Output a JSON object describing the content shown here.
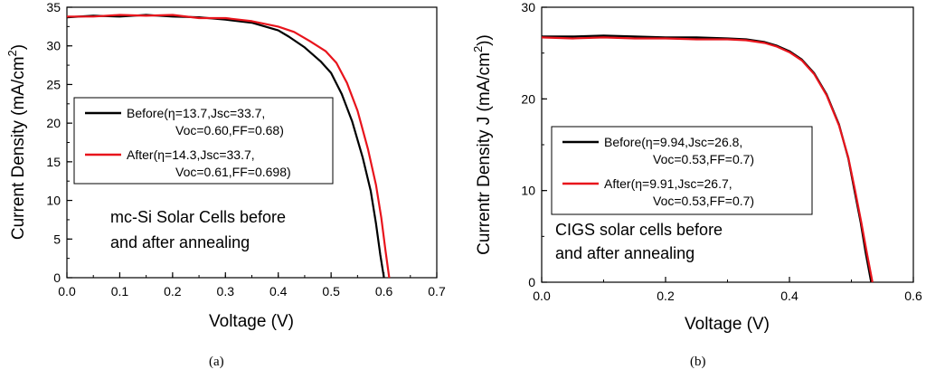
{
  "subfigure_labels": [
    "(a)",
    "(b)"
  ],
  "chart_data": [
    {
      "type": "line",
      "title": "",
      "xlabel": "Voltage (V)",
      "ylabel_main": "Current Density (mA/cm",
      "ylabel_sup": "2",
      "ylabel_tail": ")",
      "xlim": [
        0.0,
        0.7
      ],
      "ylim": [
        0,
        35
      ],
      "x_ticks": [
        "0.0",
        "0.1",
        "0.2",
        "0.3",
        "0.4",
        "0.5",
        "0.6",
        "0.7"
      ],
      "y_ticks": [
        "0",
        "5",
        "10",
        "15",
        "20",
        "25",
        "30",
        "35"
      ],
      "annotation": [
        "mc-Si Solar Cells before",
        "and after annealing"
      ],
      "legend": [
        {
          "line1": "Before(η=13.7,Jsc=33.7,",
          "line2": "Voc=0.60,FF=0.68)",
          "color": "#000000"
        },
        {
          "line1": "After(η=14.3,Jsc=33.7,",
          "line2": "Voc=0.61,FF=0.698)",
          "color": "#e8141c"
        }
      ],
      "series": [
        {
          "name": "Before",
          "color": "#000000",
          "points": [
            [
              0.0,
              33.7
            ],
            [
              0.05,
              33.9
            ],
            [
              0.1,
              33.8
            ],
            [
              0.15,
              34.0
            ],
            [
              0.2,
              33.8
            ],
            [
              0.25,
              33.7
            ],
            [
              0.3,
              33.4
            ],
            [
              0.35,
              33.0
            ],
            [
              0.4,
              32.0
            ],
            [
              0.42,
              31.2
            ],
            [
              0.45,
              29.8
            ],
            [
              0.48,
              28.0
            ],
            [
              0.5,
              26.5
            ],
            [
              0.52,
              23.8
            ],
            [
              0.54,
              20.2
            ],
            [
              0.56,
              15.5
            ],
            [
              0.575,
              11.2
            ],
            [
              0.585,
              7.0
            ],
            [
              0.593,
              3.0
            ],
            [
              0.6,
              0.0
            ]
          ]
        },
        {
          "name": "After",
          "color": "#e8141c",
          "points": [
            [
              0.0,
              33.8
            ],
            [
              0.05,
              33.8
            ],
            [
              0.1,
              34.0
            ],
            [
              0.15,
              33.9
            ],
            [
              0.2,
              34.0
            ],
            [
              0.25,
              33.6
            ],
            [
              0.3,
              33.6
            ],
            [
              0.35,
              33.2
            ],
            [
              0.4,
              32.5
            ],
            [
              0.43,
              31.8
            ],
            [
              0.46,
              30.6
            ],
            [
              0.49,
              29.3
            ],
            [
              0.51,
              27.8
            ],
            [
              0.53,
              25.2
            ],
            [
              0.55,
              21.6
            ],
            [
              0.57,
              16.6
            ],
            [
              0.585,
              12.0
            ],
            [
              0.595,
              7.8
            ],
            [
              0.603,
              3.5
            ],
            [
              0.61,
              0.0
            ]
          ]
        }
      ]
    },
    {
      "type": "line",
      "title": "",
      "xlabel": "Voltage (V)",
      "ylabel_main": "Currentr Density J (mA/cm",
      "ylabel_sup": "2",
      "ylabel_tail": "))",
      "xlim": [
        0.0,
        0.6
      ],
      "ylim": [
        0,
        30
      ],
      "x_ticks": [
        "0.0",
        "0.2",
        "0.4",
        "0.6"
      ],
      "y_ticks": [
        "0",
        "10",
        "20",
        "30"
      ],
      "annotation": [
        "CIGS solar cells before",
        "and after annealing"
      ],
      "legend": [
        {
          "line1": "Before(η=9.94,Jsc=26.8,",
          "line2": "Voc=0.53,FF=0.7)",
          "color": "#000000"
        },
        {
          "line1": "After(η=9.91,Jsc=26.7,",
          "line2": "Voc=0.53,FF=0.7)",
          "color": "#e8141c"
        }
      ],
      "series": [
        {
          "name": "Before",
          "color": "#000000",
          "points": [
            [
              0.0,
              26.8
            ],
            [
              0.05,
              26.8
            ],
            [
              0.1,
              26.9
            ],
            [
              0.15,
              26.8
            ],
            [
              0.2,
              26.7
            ],
            [
              0.25,
              26.7
            ],
            [
              0.3,
              26.6
            ],
            [
              0.33,
              26.5
            ],
            [
              0.36,
              26.2
            ],
            [
              0.38,
              25.8
            ],
            [
              0.4,
              25.2
            ],
            [
              0.42,
              24.3
            ],
            [
              0.44,
              22.8
            ],
            [
              0.46,
              20.5
            ],
            [
              0.48,
              17.2
            ],
            [
              0.495,
              13.5
            ],
            [
              0.505,
              10.0
            ],
            [
              0.515,
              6.5
            ],
            [
              0.523,
              3.2
            ],
            [
              0.532,
              0.0
            ]
          ]
        },
        {
          "name": "After",
          "color": "#e8141c",
          "points": [
            [
              0.0,
              26.7
            ],
            [
              0.05,
              26.6
            ],
            [
              0.1,
              26.7
            ],
            [
              0.15,
              26.6
            ],
            [
              0.2,
              26.6
            ],
            [
              0.25,
              26.5
            ],
            [
              0.3,
              26.5
            ],
            [
              0.33,
              26.4
            ],
            [
              0.36,
              26.1
            ],
            [
              0.38,
              25.7
            ],
            [
              0.4,
              25.1
            ],
            [
              0.42,
              24.2
            ],
            [
              0.44,
              22.7
            ],
            [
              0.46,
              20.4
            ],
            [
              0.48,
              17.1
            ],
            [
              0.495,
              13.6
            ],
            [
              0.506,
              10.0
            ],
            [
              0.516,
              6.5
            ],
            [
              0.525,
              3.2
            ],
            [
              0.534,
              0.0
            ]
          ]
        }
      ]
    }
  ]
}
